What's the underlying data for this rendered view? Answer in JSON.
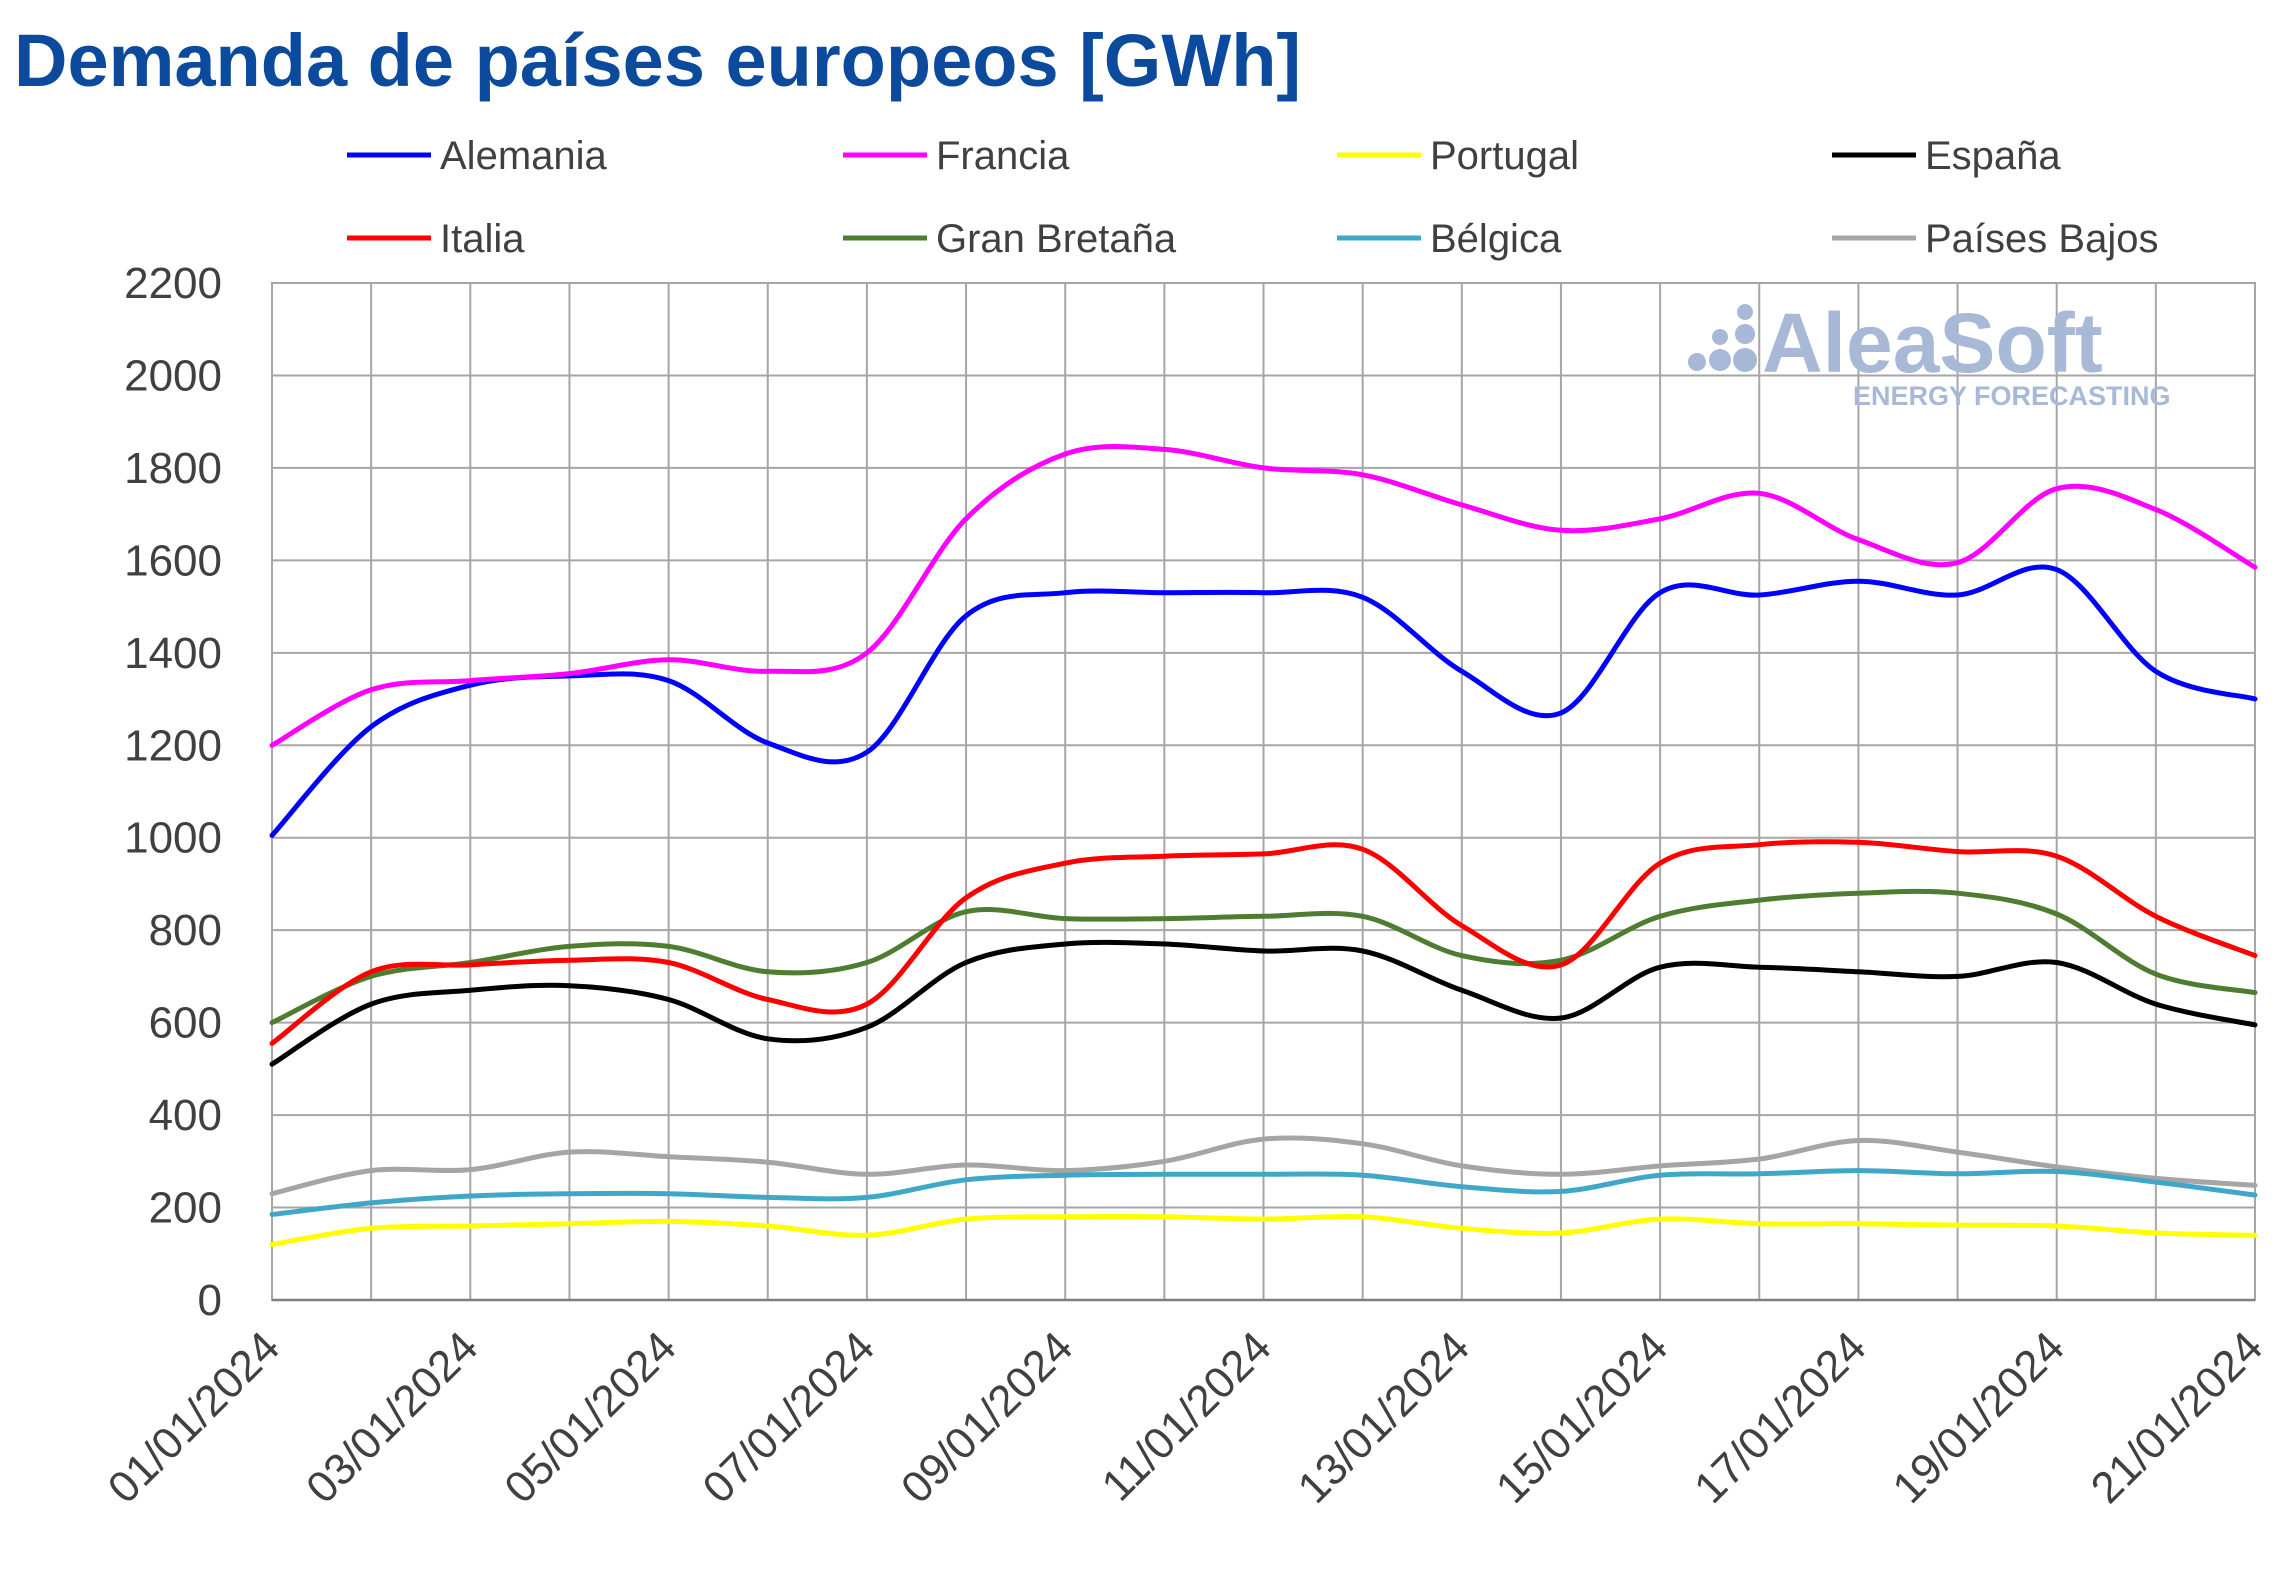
{
  "chart_data": {
    "type": "line",
    "title": "Demanda de países europeos [GWh]",
    "xlabel": "",
    "ylabel": "",
    "ylim": [
      0,
      2200
    ],
    "yticks": [
      0,
      200,
      400,
      600,
      800,
      1000,
      1200,
      1400,
      1600,
      1800,
      2000,
      2200
    ],
    "x": [
      "01/01/2024",
      "02/01/2024",
      "03/01/2024",
      "04/01/2024",
      "05/01/2024",
      "06/01/2024",
      "07/01/2024",
      "08/01/2024",
      "09/01/2024",
      "10/01/2024",
      "11/01/2024",
      "12/01/2024",
      "13/01/2024",
      "14/01/2024",
      "15/01/2024",
      "16/01/2024",
      "17/01/2024",
      "18/01/2024",
      "19/01/2024",
      "20/01/2024",
      "21/01/2024"
    ],
    "xtick_labels": [
      "01/01/2024",
      "03/01/2024",
      "05/01/2024",
      "07/01/2024",
      "09/01/2024",
      "11/01/2024",
      "13/01/2024",
      "15/01/2024",
      "17/01/2024",
      "19/01/2024",
      "21/01/2024"
    ],
    "grid": true,
    "legend_position": "top",
    "series": [
      {
        "name": "Alemania",
        "color": "#0000ff",
        "values": [
          1005,
          1240,
          1330,
          1350,
          1340,
          1205,
          1185,
          1480,
          1530,
          1530,
          1530,
          1520,
          1360,
          1270,
          1530,
          1525,
          1555,
          1525,
          1580,
          1360,
          1300
        ]
      },
      {
        "name": "Francia",
        "color": "#ff00ff",
        "values": [
          1200,
          1320,
          1340,
          1355,
          1385,
          1360,
          1400,
          1690,
          1830,
          1840,
          1800,
          1785,
          1720,
          1665,
          1690,
          1745,
          1645,
          1595,
          1755,
          1710,
          1585
        ]
      },
      {
        "name": "Portugal",
        "color": "#ffff00",
        "values": [
          120,
          155,
          160,
          165,
          170,
          160,
          140,
          175,
          180,
          180,
          175,
          180,
          155,
          145,
          175,
          165,
          165,
          162,
          160,
          145,
          140
        ]
      },
      {
        "name": "España",
        "color": "#000000",
        "values": [
          510,
          640,
          670,
          680,
          650,
          565,
          590,
          730,
          770,
          770,
          755,
          755,
          670,
          610,
          720,
          720,
          710,
          700,
          730,
          640,
          595
        ]
      },
      {
        "name": "Italia",
        "color": "#ff0000",
        "values": [
          555,
          710,
          725,
          735,
          730,
          650,
          640,
          870,
          945,
          960,
          965,
          975,
          810,
          725,
          945,
          985,
          990,
          970,
          960,
          830,
          745
        ]
      },
      {
        "name": "Gran Bretaña",
        "color": "#4e7d31",
        "values": [
          600,
          700,
          730,
          765,
          765,
          710,
          730,
          840,
          825,
          825,
          830,
          830,
          745,
          735,
          830,
          865,
          880,
          880,
          835,
          705,
          665
        ]
      },
      {
        "name": "Bélgica",
        "color": "#3fa8c6",
        "values": [
          185,
          210,
          225,
          230,
          230,
          222,
          222,
          260,
          270,
          272,
          272,
          270,
          245,
          235,
          270,
          273,
          280,
          273,
          278,
          255,
          227
        ]
      },
      {
        "name": "Países Bajos",
        "color": "#a5a5a5",
        "values": [
          230,
          280,
          282,
          320,
          310,
          298,
          272,
          292,
          280,
          300,
          348,
          338,
          290,
          272,
          290,
          305,
          345,
          320,
          288,
          263,
          248
        ]
      }
    ]
  },
  "watermark": {
    "brand": "AleaSoft",
    "tagline": "ENERGY FORECASTING",
    "color": "#a7b9d6"
  },
  "colors": {
    "title": "#0b4a9c",
    "grid": "#a6a6a6",
    "axis_text": "#404040"
  }
}
